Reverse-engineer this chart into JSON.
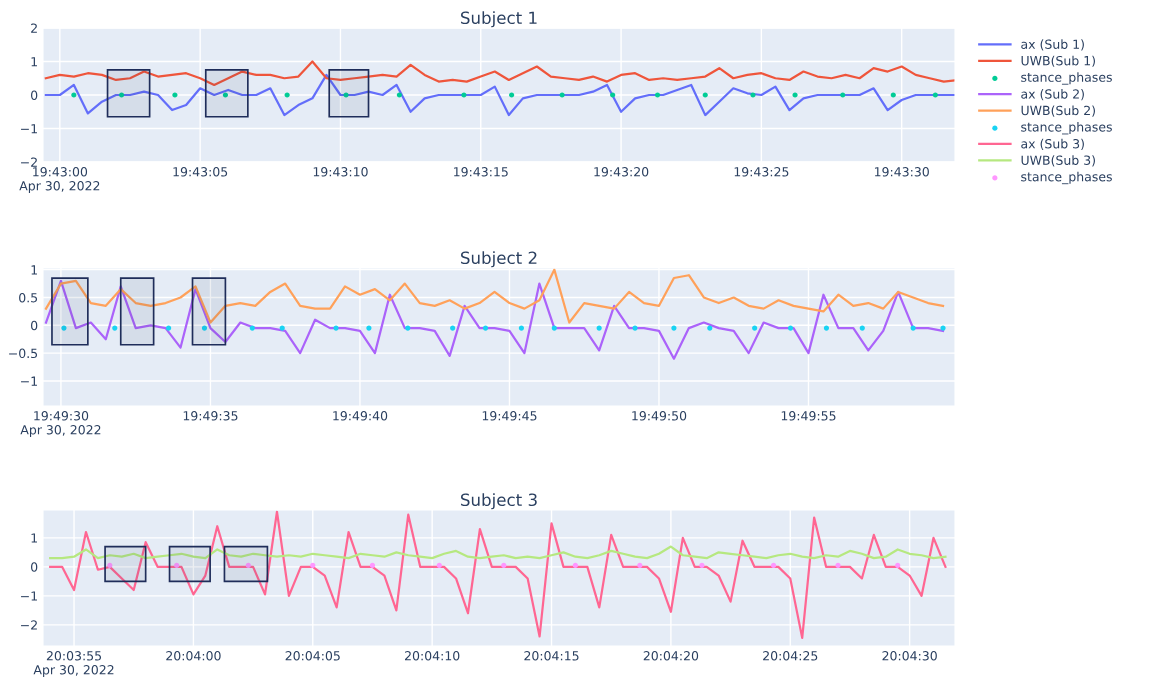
{
  "chart_data": [
    {
      "type": "line",
      "title": "Subject 1",
      "legend": "right",
      "grid": true,
      "x": [
        "2022-04-30T19:42:59.5",
        "2022-04-30T19:43:00",
        "2022-04-30T19:43:00.5",
        "2022-04-30T19:43:01",
        "2022-04-30T19:43:01.5",
        "2022-04-30T19:43:02",
        "2022-04-30T19:43:02.5",
        "2022-04-30T19:43:03",
        "2022-04-30T19:43:03.5",
        "2022-04-30T19:43:04",
        "2022-04-30T19:43:04.5",
        "2022-04-30T19:43:05",
        "2022-04-30T19:43:05.5",
        "2022-04-30T19:43:06",
        "2022-04-30T19:43:06.5",
        "2022-04-30T19:43:07",
        "2022-04-30T19:43:07.5",
        "2022-04-30T19:43:08",
        "2022-04-30T19:43:08.5",
        "2022-04-30T19:43:09",
        "2022-04-30T19:43:09.5",
        "2022-04-30T19:43:10",
        "2022-04-30T19:43:10.5",
        "2022-04-30T19:43:11",
        "2022-04-30T19:43:11.5",
        "2022-04-30T19:43:12",
        "2022-04-30T19:43:12.5",
        "2022-04-30T19:43:13",
        "2022-04-30T19:43:13.5",
        "2022-04-30T19:43:14",
        "2022-04-30T19:43:14.5",
        "2022-04-30T19:43:15",
        "2022-04-30T19:43:15.5",
        "2022-04-30T19:43:16",
        "2022-04-30T19:43:16.5",
        "2022-04-30T19:43:17",
        "2022-04-30T19:43:17.5",
        "2022-04-30T19:43:18",
        "2022-04-30T19:43:18.5",
        "2022-04-30T19:43:19",
        "2022-04-30T19:43:19.5",
        "2022-04-30T19:43:20",
        "2022-04-30T19:43:20.5",
        "2022-04-30T19:43:21",
        "2022-04-30T19:43:21.5",
        "2022-04-30T19:43:22",
        "2022-04-30T19:43:22.5",
        "2022-04-30T19:43:23",
        "2022-04-30T19:43:23.5",
        "2022-04-30T19:43:24",
        "2022-04-30T19:43:24.5",
        "2022-04-30T19:43:25",
        "2022-04-30T19:43:25.5",
        "2022-04-30T19:43:26",
        "2022-04-30T19:43:26.5",
        "2022-04-30T19:43:27",
        "2022-04-30T19:43:27.5",
        "2022-04-30T19:43:28",
        "2022-04-30T19:43:28.5",
        "2022-04-30T19:43:29",
        "2022-04-30T19:43:29.5",
        "2022-04-30T19:43:30",
        "2022-04-30T19:43:30.5",
        "2022-04-30T19:43:31",
        "2022-04-30T19:43:31.5",
        "2022-04-30T19:43:32"
      ],
      "series": [
        {
          "name": "ax (Sub 1)",
          "color": "#636efa",
          "values": [
            0,
            0,
            0.3,
            -0.55,
            -0.2,
            0,
            0,
            0.1,
            0,
            -0.45,
            -0.3,
            0.2,
            0,
            0.15,
            0,
            0,
            0.2,
            -0.6,
            -0.3,
            -0.1,
            0.6,
            0,
            0,
            0.1,
            0,
            0.3,
            -0.5,
            -0.1,
            0,
            0,
            0,
            0,
            0.25,
            -0.6,
            -0.1,
            0,
            0,
            0,
            0,
            0.1,
            0.3,
            -0.5,
            -0.1,
            0,
            0,
            0.15,
            0.3,
            -0.6,
            -0.2,
            0.2,
            0.05,
            0,
            0.25,
            -0.45,
            -0.1,
            0,
            0,
            0,
            0,
            0.2,
            -0.45,
            -0.15,
            0,
            0,
            0,
            0
          ]
        },
        {
          "name": "UWB(Sub 1)",
          "color": "#ef553b",
          "values": [
            0.5,
            0.6,
            0.55,
            0.65,
            0.6,
            0.45,
            0.5,
            0.7,
            0.55,
            0.6,
            0.65,
            0.5,
            0.3,
            0.5,
            0.7,
            0.6,
            0.6,
            0.5,
            0.55,
            1.0,
            0.5,
            0.45,
            0.5,
            0.55,
            0.6,
            0.55,
            0.9,
            0.6,
            0.4,
            0.45,
            0.4,
            0.55,
            0.7,
            0.45,
            0.65,
            0.85,
            0.55,
            0.5,
            0.45,
            0.55,
            0.4,
            0.6,
            0.65,
            0.45,
            0.5,
            0.45,
            0.5,
            0.55,
            0.8,
            0.5,
            0.6,
            0.65,
            0.5,
            0.45,
            0.7,
            0.55,
            0.5,
            0.6,
            0.5,
            0.8,
            0.7,
            0.85,
            0.6,
            0.5,
            0.4,
            0.45
          ]
        },
        {
          "name": "stance_phases",
          "type": "scatter",
          "marker": "circle",
          "color": "#00cc96",
          "x": [
            "2022-04-30T19:43:00.5",
            "2022-04-30T19:43:02.2",
            "2022-04-30T19:43:04.1",
            "2022-04-30T19:43:05.9",
            "2022-04-30T19:43:08.1",
            "2022-04-30T19:43:10.2",
            "2022-04-30T19:43:12.1",
            "2022-04-30T19:43:14.4",
            "2022-04-30T19:43:16.1",
            "2022-04-30T19:43:17.9",
            "2022-04-30T19:43:19.7",
            "2022-04-30T19:43:21.3",
            "2022-04-30T19:43:23",
            "2022-04-30T19:43:24.7",
            "2022-04-30T19:43:26.2",
            "2022-04-30T19:43:27.9",
            "2022-04-30T19:43:29.7",
            "2022-04-30T19:43:31.2"
          ],
          "values": [
            0,
            0,
            0,
            0,
            0,
            0,
            0,
            0,
            0,
            0,
            0,
            0,
            0,
            0,
            0,
            0,
            0,
            0
          ]
        }
      ],
      "xlim": [
        "2022-04-30T19:42:59.4",
        "2022-04-30T19:43:31.9"
      ],
      "xticks": [
        {
          "value": "2022-04-30T19:43:00",
          "label": "19:43:00\nApr 30, 2022"
        },
        {
          "value": "2022-04-30T19:43:05",
          "label": "19:43:05"
        },
        {
          "value": "2022-04-30T19:43:10",
          "label": "19:43:10"
        },
        {
          "value": "2022-04-30T19:43:15",
          "label": "19:43:15"
        },
        {
          "value": "2022-04-30T19:43:20",
          "label": "19:43:20"
        },
        {
          "value": "2022-04-30T19:43:25",
          "label": "19:43:25"
        },
        {
          "value": "2022-04-30T19:43:30",
          "label": "19:43:30"
        }
      ],
      "ylim": [
        -2,
        2
      ],
      "yticks": [
        {
          "value": -2,
          "label": "−2"
        },
        {
          "value": -1,
          "label": "−1"
        },
        0,
        1,
        2
      ],
      "bands": [
        {
          "axis": "x",
          "from": "2022-04-30T19:43:01.7",
          "to": "2022-04-30T19:43:03.2",
          "color": "#1f2d5a"
        },
        {
          "axis": "x",
          "from": "2022-04-30T19:43:05.2",
          "to": "2022-04-30T19:43:06.7",
          "color": "#1f2d5a"
        },
        {
          "axis": "x",
          "from": "2022-04-30T19:43:09.6",
          "to": "2022-04-30T19:43:11",
          "color": "#1f2d5a"
        }
      ]
    },
    {
      "type": "line",
      "title": "Subject 2",
      "legend": "right",
      "grid": true,
      "x": [
        "2022-04-30T19:49:29.5",
        "2022-04-30T19:49:30",
        "2022-04-30T19:49:30.5",
        "2022-04-30T19:49:31",
        "2022-04-30T19:49:31.5",
        "2022-04-30T19:49:32",
        "2022-04-30T19:49:32.5",
        "2022-04-30T19:49:33",
        "2022-04-30T19:49:33.5",
        "2022-04-30T19:49:34",
        "2022-04-30T19:49:34.5",
        "2022-04-30T19:49:35",
        "2022-04-30T19:49:35.5",
        "2022-04-30T19:49:36",
        "2022-04-30T19:49:36.5",
        "2022-04-30T19:49:37",
        "2022-04-30T19:49:37.5",
        "2022-04-30T19:49:38",
        "2022-04-30T19:49:38.5",
        "2022-04-30T19:49:39",
        "2022-04-30T19:49:39.5",
        "2022-04-30T19:49:40",
        "2022-04-30T19:49:40.5",
        "2022-04-30T19:49:41",
        "2022-04-30T19:49:41.5",
        "2022-04-30T19:49:42",
        "2022-04-30T19:49:42.5",
        "2022-04-30T19:49:43",
        "2022-04-30T19:49:43.5",
        "2022-04-30T19:49:44",
        "2022-04-30T19:49:44.5",
        "2022-04-30T19:49:45",
        "2022-04-30T19:49:45.5",
        "2022-04-30T19:49:46",
        "2022-04-30T19:49:46.5",
        "2022-04-30T19:49:47",
        "2022-04-30T19:49:47.5",
        "2022-04-30T19:49:48",
        "2022-04-30T19:49:48.5",
        "2022-04-30T19:49:49",
        "2022-04-30T19:49:49.5",
        "2022-04-30T19:49:50",
        "2022-04-30T19:49:50.5",
        "2022-04-30T19:49:51",
        "2022-04-30T19:49:51.5",
        "2022-04-30T19:49:52",
        "2022-04-30T19:49:52.5",
        "2022-04-30T19:49:53",
        "2022-04-30T19:49:53.5",
        "2022-04-30T19:49:54",
        "2022-04-30T19:49:54.5",
        "2022-04-30T19:49:55",
        "2022-04-30T19:49:55.5",
        "2022-04-30T19:49:56",
        "2022-04-30T19:49:56.5",
        "2022-04-30T19:49:57",
        "2022-04-30T19:49:57.5",
        "2022-04-30T19:49:58",
        "2022-04-30T19:49:58.5",
        "2022-04-30T19:49:59",
        "2022-04-30T19:49:59.5"
      ],
      "series": [
        {
          "name": "ax (Sub 2)",
          "color": "#ab63fa",
          "values": [
            0.05,
            0.8,
            -0.05,
            0.05,
            -0.25,
            0.7,
            -0.05,
            0,
            -0.05,
            -0.4,
            0.65,
            -0.05,
            -0.3,
            0.05,
            -0.05,
            -0.05,
            -0.1,
            -0.5,
            0.1,
            -0.05,
            -0.05,
            -0.1,
            -0.5,
            0.55,
            -0.05,
            -0.05,
            -0.1,
            -0.55,
            0.35,
            -0.05,
            -0.05,
            -0.1,
            -0.5,
            0.75,
            -0.05,
            -0.05,
            -0.05,
            -0.45,
            0.35,
            -0.05,
            -0.05,
            -0.1,
            -0.6,
            -0.05,
            0.05,
            -0.05,
            -0.1,
            -0.5,
            0.05,
            -0.05,
            -0.05,
            -0.5,
            0.55,
            -0.05,
            -0.05,
            -0.45,
            -0.1,
            0.6,
            -0.05,
            -0.05,
            -0.1
          ]
        },
        {
          "name": "UWB(Sub 2)",
          "color": "#ffa15a",
          "values": [
            0.3,
            0.75,
            0.8,
            0.4,
            0.35,
            0.65,
            0.4,
            0.35,
            0.4,
            0.5,
            0.7,
            0.05,
            0.35,
            0.4,
            0.35,
            0.6,
            0.75,
            0.35,
            0.3,
            0.3,
            0.7,
            0.55,
            0.65,
            0.45,
            0.75,
            0.4,
            0.35,
            0.45,
            0.3,
            0.4,
            0.6,
            0.4,
            0.3,
            0.45,
            1.0,
            0.05,
            0.4,
            0.35,
            0.3,
            0.6,
            0.4,
            0.35,
            0.85,
            0.9,
            0.5,
            0.4,
            0.5,
            0.35,
            0.3,
            0.45,
            0.35,
            0.3,
            0.25,
            0.55,
            0.35,
            0.4,
            0.3,
            0.6,
            0.5,
            0.4,
            0.35
          ]
        },
        {
          "name": "stance_phases",
          "type": "scatter",
          "marker": "circle",
          "color": "#19d3f3",
          "x": [
            "2022-04-30T19:49:30.1",
            "2022-04-30T19:49:31.8",
            "2022-04-30T19:49:33.6",
            "2022-04-30T19:49:34.8",
            "2022-04-30T19:49:36.4",
            "2022-04-30T19:49:37.4",
            "2022-04-30T19:49:39.2",
            "2022-04-30T19:49:40.3",
            "2022-04-30T19:49:41.6",
            "2022-04-30T19:49:43.1",
            "2022-04-30T19:49:44.2",
            "2022-04-30T19:49:45.4",
            "2022-04-30T19:49:46.5",
            "2022-04-30T19:49:48",
            "2022-04-30T19:49:49.2",
            "2022-04-30T19:49:50.5",
            "2022-04-30T19:49:51.7",
            "2022-04-30T19:49:53.2",
            "2022-04-30T19:49:54.4",
            "2022-04-30T19:49:55.6",
            "2022-04-30T19:49:56.8",
            "2022-04-30T19:49:58.5",
            "2022-04-30T19:49:59.5"
          ],
          "values": [
            -0.05,
            -0.05,
            -0.05,
            -0.05,
            -0.05,
            -0.05,
            -0.05,
            -0.05,
            -0.05,
            -0.05,
            -0.05,
            -0.05,
            -0.05,
            -0.05,
            -0.05,
            -0.05,
            -0.05,
            -0.05,
            -0.05,
            -0.05,
            -0.05,
            -0.05,
            -0.05
          ]
        }
      ],
      "xlim": [
        "2022-04-30T19:49:29.4",
        "2022-04-30T19:49:59.9"
      ],
      "xticks": [
        {
          "value": "2022-04-30T19:49:30",
          "label": "19:49:30\nApr 30, 2022"
        },
        {
          "value": "2022-04-30T19:49:35",
          "label": "19:49:35"
        },
        {
          "value": "2022-04-30T19:49:40",
          "label": "19:49:40"
        },
        {
          "value": "2022-04-30T19:49:45",
          "label": "19:49:45"
        },
        {
          "value": "2022-04-30T19:49:50",
          "label": "19:49:50"
        },
        {
          "value": "2022-04-30T19:49:55",
          "label": "19:49:55"
        }
      ],
      "ylim": [
        -1.45,
        1.03
      ],
      "yticks": [
        {
          "value": -1,
          "label": "−1"
        },
        {
          "value": -0.5,
          "label": "−0.5"
        },
        0,
        0.5,
        1
      ],
      "bands": [
        {
          "axis": "x",
          "from": "2022-04-30T19:49:29.7",
          "to": "2022-04-30T19:49:30.9",
          "color": "#1f2d5a"
        },
        {
          "axis": "x",
          "from": "2022-04-30T19:49:32",
          "to": "2022-04-30T19:49:33.1",
          "color": "#1f2d5a"
        },
        {
          "axis": "x",
          "from": "2022-04-30T19:49:34.4",
          "to": "2022-04-30T19:49:35.5",
          "color": "#1f2d5a"
        }
      ]
    },
    {
      "type": "line",
      "title": "Subject 3",
      "legend": "right",
      "grid": true,
      "x": [
        "2022-04-30T20:03:54",
        "2022-04-30T20:03:54.5",
        "2022-04-30T20:03:55",
        "2022-04-30T20:03:55.5",
        "2022-04-30T20:03:56",
        "2022-04-30T20:03:56.5",
        "2022-04-30T20:03:57",
        "2022-04-30T20:03:57.5",
        "2022-04-30T20:03:58",
        "2022-04-30T20:03:58.5",
        "2022-04-30T20:03:59",
        "2022-04-30T20:03:59.5",
        "2022-04-30T20:04:00",
        "2022-04-30T20:04:00.5",
        "2022-04-30T20:04:01",
        "2022-04-30T20:04:01.5",
        "2022-04-30T20:04:02",
        "2022-04-30T20:04:02.5",
        "2022-04-30T20:04:03",
        "2022-04-30T20:04:03.5",
        "2022-04-30T20:04:04",
        "2022-04-30T20:04:04.5",
        "2022-04-30T20:04:05",
        "2022-04-30T20:04:05.5",
        "2022-04-30T20:04:06",
        "2022-04-30T20:04:06.5",
        "2022-04-30T20:04:07",
        "2022-04-30T20:04:07.5",
        "2022-04-30T20:04:08",
        "2022-04-30T20:04:08.5",
        "2022-04-30T20:04:09",
        "2022-04-30T20:04:09.5",
        "2022-04-30T20:04:10",
        "2022-04-30T20:04:10.5",
        "2022-04-30T20:04:11",
        "2022-04-30T20:04:11.5",
        "2022-04-30T20:04:12",
        "2022-04-30T20:04:12.5",
        "2022-04-30T20:04:13",
        "2022-04-30T20:04:13.5",
        "2022-04-30T20:04:14",
        "2022-04-30T20:04:14.5",
        "2022-04-30T20:04:15",
        "2022-04-30T20:04:15.5",
        "2022-04-30T20:04:16",
        "2022-04-30T20:04:16.5",
        "2022-04-30T20:04:17",
        "2022-04-30T20:04:17.5",
        "2022-04-30T20:04:18",
        "2022-04-30T20:04:18.5",
        "2022-04-30T20:04:19",
        "2022-04-30T20:04:19.5",
        "2022-04-30T20:04:20",
        "2022-04-30T20:04:20.5",
        "2022-04-30T20:04:21",
        "2022-04-30T20:04:21.5",
        "2022-04-30T20:04:22",
        "2022-04-30T20:04:22.5",
        "2022-04-30T20:04:23",
        "2022-04-30T20:04:23.5",
        "2022-04-30T20:04:24",
        "2022-04-30T20:04:24.5",
        "2022-04-30T20:04:25",
        "2022-04-30T20:04:25.5",
        "2022-04-30T20:04:26",
        "2022-04-30T20:04:26.5",
        "2022-04-30T20:04:27",
        "2022-04-30T20:04:27.5",
        "2022-04-30T20:04:28",
        "2022-04-30T20:04:28.5",
        "2022-04-30T20:04:29",
        "2022-04-30T20:04:29.5",
        "2022-04-30T20:04:30",
        "2022-04-30T20:04:30.5",
        "2022-04-30T20:04:31",
        "2022-04-30T20:04:31.5"
      ],
      "series": [
        {
          "name": "ax (Sub 3)",
          "color": "#ff6692",
          "values": [
            0,
            0,
            -0.8,
            1.2,
            -0.1,
            0,
            -0.4,
            -0.8,
            0.85,
            0,
            0,
            0,
            -0.95,
            -0.3,
            1.4,
            0,
            0,
            0,
            -0.95,
            1.9,
            -1.0,
            0,
            0,
            -0.3,
            -1.4,
            1.2,
            0,
            0,
            -0.3,
            -1.5,
            1.8,
            0,
            0,
            0,
            -0.4,
            -1.6,
            1.3,
            0,
            0,
            0,
            -0.4,
            -2.4,
            1.5,
            0,
            0,
            0,
            -1.4,
            1.1,
            0,
            0,
            0,
            -0.4,
            -1.55,
            1.0,
            0,
            0,
            -0.3,
            -1.2,
            0.9,
            0,
            0,
            0,
            -0.4,
            -2.45,
            1.7,
            0,
            0,
            0,
            -0.4,
            1.1,
            0,
            0,
            -0.3,
            -1.0,
            1.0,
            0
          ]
        },
        {
          "name": "UWB(Sub 3)",
          "color": "#b6e880",
          "values": [
            0.3,
            0.3,
            0.35,
            0.6,
            0.3,
            0.4,
            0.35,
            0.45,
            0.3,
            0.35,
            0.4,
            0.45,
            0.35,
            0.3,
            0.6,
            0.4,
            0.35,
            0.45,
            0.4,
            0.35,
            0.4,
            0.35,
            0.45,
            0.4,
            0.35,
            0.3,
            0.45,
            0.4,
            0.35,
            0.5,
            0.4,
            0.35,
            0.3,
            0.45,
            0.55,
            0.35,
            0.3,
            0.35,
            0.4,
            0.3,
            0.35,
            0.3,
            0.4,
            0.5,
            0.35,
            0.3,
            0.4,
            0.55,
            0.45,
            0.35,
            0.3,
            0.45,
            0.7,
            0.4,
            0.35,
            0.3,
            0.5,
            0.45,
            0.4,
            0.35,
            0.3,
            0.4,
            0.45,
            0.35,
            0.3,
            0.4,
            0.35,
            0.55,
            0.45,
            0.3,
            0.35,
            0.6,
            0.45,
            0.4,
            0.3,
            0.35
          ]
        },
        {
          "name": "stance_phases",
          "type": "scatter",
          "marker": "circle",
          "color": "#ff97ff",
          "x": [
            "2022-04-30T20:03:56.5",
            "2022-04-30T20:03:59.3",
            "2022-04-30T20:04:02.3",
            "2022-04-30T20:04:05",
            "2022-04-30T20:04:07.5",
            "2022-04-30T20:04:10.3",
            "2022-04-30T20:04:13",
            "2022-04-30T20:04:16",
            "2022-04-30T20:04:18.7",
            "2022-04-30T20:04:21.3",
            "2022-04-30T20:04:24.3",
            "2022-04-30T20:04:27",
            "2022-04-30T20:04:29.5"
          ],
          "values": [
            0.05,
            0.05,
            0.05,
            0.05,
            0.05,
            0.05,
            0.05,
            0.05,
            0.05,
            0.05,
            0.05,
            0.05,
            0.05
          ]
        }
      ],
      "xlim": [
        "2022-04-30T20:03:53.7",
        "2022-04-30T20:04:31.9"
      ],
      "xticks": [
        {
          "value": "2022-04-30T20:03:55",
          "label": "20:03:55\nApr 30, 2022"
        },
        {
          "value": "2022-04-30T20:04:00",
          "label": "20:04:00"
        },
        {
          "value": "2022-04-30T20:04:05",
          "label": "20:04:05"
        },
        {
          "value": "2022-04-30T20:04:10",
          "label": "20:04:10"
        },
        {
          "value": "2022-04-30T20:04:15",
          "label": "20:04:15"
        },
        {
          "value": "2022-04-30T20:04:20",
          "label": "20:04:20"
        },
        {
          "value": "2022-04-30T20:04:25",
          "label": "20:04:25"
        },
        {
          "value": "2022-04-30T20:04:30",
          "label": "20:04:30"
        }
      ],
      "ylim": [
        -2.73,
        1.96
      ],
      "yticks": [
        {
          "value": -2,
          "label": "−2"
        },
        {
          "value": -1,
          "label": "−1"
        },
        0,
        1
      ],
      "bands": [
        {
          "axis": "x",
          "from": "2022-04-30T20:03:56.3",
          "to": "2022-04-30T20:03:58",
          "color": "#1f2d5a"
        },
        {
          "axis": "x",
          "from": "2022-04-30T20:03:59",
          "to": "2022-04-30T20:04:00.7",
          "color": "#1f2d5a"
        },
        {
          "axis": "x",
          "from": "2022-04-30T20:04:01.3",
          "to": "2022-04-30T20:04:03.1",
          "color": "#1f2d5a"
        }
      ]
    }
  ]
}
